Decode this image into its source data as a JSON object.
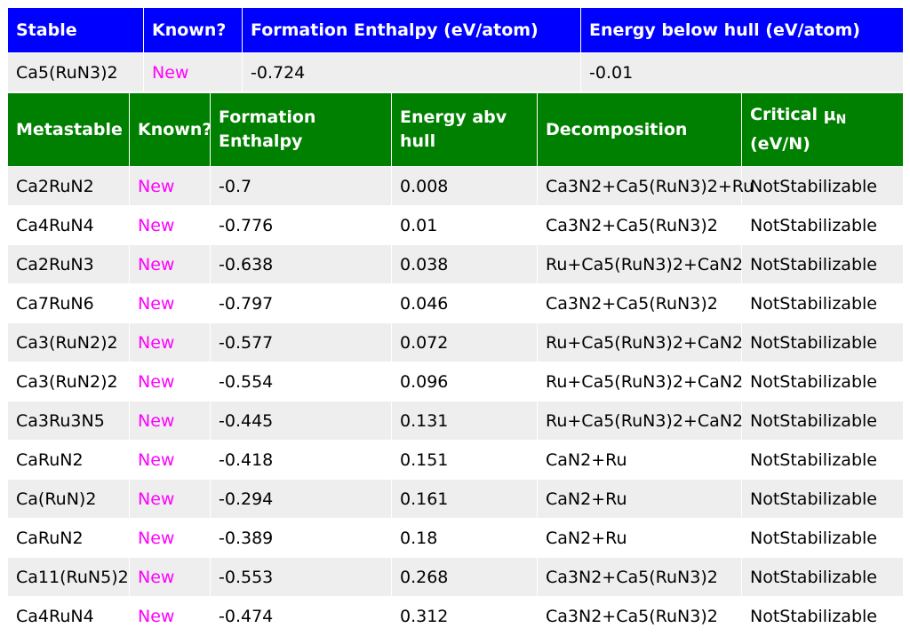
{
  "colors": {
    "stable_header_bg": "#0000ff",
    "metastable_header_bg": "#008000",
    "new_text": "#ff00ff",
    "row_alt_bg": "#eeeeee"
  },
  "stable": {
    "headers": [
      "Stable",
      "Known?",
      "Formation Enthalpy (eV/atom)",
      "Energy below hull (eV/atom)"
    ],
    "row": {
      "formula": "Ca5(RuN3)2",
      "known": "New",
      "enthalpy": "-0.724",
      "hull": "-0.01"
    }
  },
  "metastable": {
    "headers": {
      "formula": "Metastable",
      "known": "Known?",
      "enthalpy": "Formation Enthalpy",
      "hull": "Energy abv hull",
      "decomposition": "Decomposition",
      "critical": "Critical μ",
      "critical_sub": "N",
      "critical_unit": "(eV/N)"
    },
    "rows": [
      {
        "formula": "Ca2RuN2",
        "known": "New",
        "enthalpy": "-0.7",
        "hull": "0.008",
        "decomposition": "Ca3N2+Ca5(RuN3)2+Ru",
        "critical": "NotStabilizable"
      },
      {
        "formula": "Ca4RuN4",
        "known": "New",
        "enthalpy": "-0.776",
        "hull": "0.01",
        "decomposition": "Ca3N2+Ca5(RuN3)2",
        "critical": "NotStabilizable"
      },
      {
        "formula": "Ca2RuN3",
        "known": "New",
        "enthalpy": "-0.638",
        "hull": "0.038",
        "decomposition": "Ru+Ca5(RuN3)2+CaN2",
        "critical": "NotStabilizable"
      },
      {
        "formula": "Ca7RuN6",
        "known": "New",
        "enthalpy": "-0.797",
        "hull": "0.046",
        "decomposition": "Ca3N2+Ca5(RuN3)2",
        "critical": "NotStabilizable"
      },
      {
        "formula": "Ca3(RuN2)2",
        "known": "New",
        "enthalpy": "-0.577",
        "hull": "0.072",
        "decomposition": "Ru+Ca5(RuN3)2+CaN2",
        "critical": "NotStabilizable"
      },
      {
        "formula": "Ca3(RuN2)2",
        "known": "New",
        "enthalpy": "-0.554",
        "hull": "0.096",
        "decomposition": "Ru+Ca5(RuN3)2+CaN2",
        "critical": "NotStabilizable"
      },
      {
        "formula": "Ca3Ru3N5",
        "known": "New",
        "enthalpy": "-0.445",
        "hull": "0.131",
        "decomposition": "Ru+Ca5(RuN3)2+CaN2",
        "critical": "NotStabilizable"
      },
      {
        "formula": "CaRuN2",
        "known": "New",
        "enthalpy": "-0.418",
        "hull": "0.151",
        "decomposition": "CaN2+Ru",
        "critical": "NotStabilizable"
      },
      {
        "formula": "Ca(RuN)2",
        "known": "New",
        "enthalpy": "-0.294",
        "hull": "0.161",
        "decomposition": "CaN2+Ru",
        "critical": "NotStabilizable"
      },
      {
        "formula": "CaRuN2",
        "known": "New",
        "enthalpy": "-0.389",
        "hull": "0.18",
        "decomposition": "CaN2+Ru",
        "critical": "NotStabilizable"
      },
      {
        "formula": "Ca11(RuN5)2",
        "known": "New",
        "enthalpy": "-0.553",
        "hull": "0.268",
        "decomposition": "Ca3N2+Ca5(RuN3)2",
        "critical": "NotStabilizable"
      },
      {
        "formula": "Ca4RuN4",
        "known": "New",
        "enthalpy": "-0.474",
        "hull": "0.312",
        "decomposition": "Ca3N2+Ca5(RuN3)2",
        "critical": "NotStabilizable"
      }
    ]
  }
}
